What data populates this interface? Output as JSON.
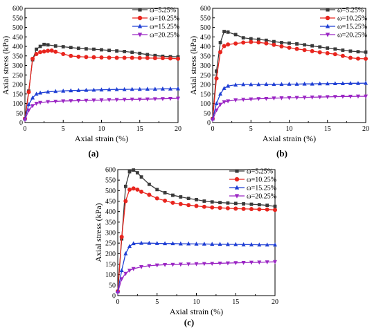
{
  "figure": {
    "panel_labels": [
      "(a)",
      "(b)",
      "(c)"
    ]
  },
  "chart_data": [
    {
      "panel": "(a)",
      "type": "line",
      "xlabel": "Axial strain (%)",
      "ylabel": "Axial stress (kPa)",
      "xlim": [
        0,
        20
      ],
      "ylim": [
        0,
        600
      ],
      "xticks": [
        0,
        5,
        10,
        15,
        20
      ],
      "yticks": [
        0,
        50,
        100,
        150,
        200,
        250,
        300,
        350,
        400,
        450,
        500,
        550,
        600
      ],
      "legend_position": "top-right",
      "series": [
        {
          "name": "ω=5.25%",
          "color": "#3a3a3a",
          "marker": "square",
          "x": [
            0,
            0.5,
            1.0,
            1.5,
            2.0,
            2.5,
            3.0,
            4.0,
            5.0,
            6.0,
            7.0,
            8.0,
            9.0,
            10.0,
            11.0,
            12.0,
            13.0,
            14.0,
            15.0,
            16.0,
            17.0,
            18.0,
            19.0,
            20.0
          ],
          "y": [
            20,
            165,
            330,
            385,
            400,
            410,
            408,
            402,
            398,
            394,
            390,
            387,
            385,
            382,
            379,
            376,
            373,
            369,
            363,
            357,
            352,
            348,
            346,
            345
          ]
        },
        {
          "name": "ω=10.25%",
          "color": "#e8251e",
          "marker": "circle",
          "x": [
            0,
            0.5,
            1.0,
            1.5,
            2.0,
            2.5,
            3.0,
            3.5,
            4.0,
            5.0,
            6.0,
            7.0,
            8.0,
            9.0,
            10.0,
            11.0,
            12.0,
            13.0,
            14.0,
            15.0,
            16.0,
            17.0,
            18.0,
            19.0,
            20.0
          ],
          "y": [
            20,
            160,
            335,
            360,
            370,
            373,
            377,
            378,
            372,
            360,
            350,
            346,
            344,
            343,
            342,
            341,
            340,
            340,
            340,
            339,
            339,
            338,
            338,
            337,
            335
          ]
        },
        {
          "name": "ω=15.25%",
          "color": "#1f3fd4",
          "marker": "triangle-up",
          "x": [
            0,
            0.5,
            1.0,
            1.5,
            2.0,
            3.0,
            4.0,
            5.0,
            6.0,
            7.0,
            8.0,
            9.0,
            10.0,
            11.0,
            12.0,
            13.0,
            14.0,
            15.0,
            16.0,
            17.0,
            18.0,
            19.0,
            20.0
          ],
          "y": [
            20,
            95,
            130,
            150,
            156,
            161,
            164,
            166,
            168,
            169,
            170,
            171,
            172,
            173,
            174,
            174,
            175,
            175,
            176,
            176,
            177,
            177,
            178
          ]
        },
        {
          "name": "ω=20.25%",
          "color": "#9b26c4",
          "marker": "triangle-down",
          "x": [
            0,
            0.5,
            1.0,
            1.5,
            2.0,
            3.0,
            4.0,
            5.0,
            6.0,
            7.0,
            8.0,
            9.0,
            10.0,
            11.0,
            12.0,
            13.0,
            14.0,
            15.0,
            16.0,
            17.0,
            18.0,
            19.0,
            20.0
          ],
          "y": [
            15,
            65,
            88,
            100,
            105,
            109,
            111,
            113,
            114,
            115,
            116,
            117,
            118,
            119,
            120,
            121,
            122,
            122,
            123,
            124,
            125,
            126,
            127
          ]
        }
      ]
    },
    {
      "panel": "(b)",
      "type": "line",
      "xlabel": "Axial strain (%)",
      "ylabel": "Axial stress (kPa)",
      "xlim": [
        0,
        20
      ],
      "ylim": [
        0,
        600
      ],
      "xticks": [
        0,
        5,
        10,
        15,
        20
      ],
      "yticks": [
        0,
        50,
        100,
        150,
        200,
        250,
        300,
        350,
        400,
        450,
        500,
        550,
        600
      ],
      "legend_position": "top-right",
      "series": [
        {
          "name": "ω=5.25%",
          "color": "#3a3a3a",
          "marker": "square",
          "x": [
            0,
            0.5,
            1.0,
            1.5,
            2.0,
            3.0,
            4.0,
            5.0,
            6.0,
            7.0,
            8.0,
            9.0,
            10.0,
            11.0,
            12.0,
            13.0,
            14.0,
            15.0,
            16.0,
            17.0,
            18.0,
            19.0,
            20.0
          ],
          "y": [
            20,
            270,
            420,
            478,
            475,
            462,
            445,
            440,
            437,
            432,
            425,
            420,
            417,
            413,
            408,
            403,
            397,
            391,
            386,
            380,
            375,
            372,
            370
          ]
        },
        {
          "name": "ω=10.25%",
          "color": "#e8251e",
          "marker": "circle",
          "x": [
            0,
            0.5,
            1.0,
            1.5,
            2.0,
            3.0,
            4.0,
            5.0,
            6.0,
            7.0,
            8.0,
            9.0,
            10.0,
            11.0,
            12.0,
            13.0,
            14.0,
            15.0,
            16.0,
            17.0,
            18.0,
            19.0,
            20.0
          ],
          "y": [
            20,
            232,
            370,
            402,
            410,
            415,
            420,
            423,
            421,
            416,
            408,
            400,
            393,
            387,
            381,
            375,
            369,
            364,
            359,
            350,
            340,
            336,
            335
          ]
        },
        {
          "name": "ω=15.25%",
          "color": "#1f3fd4",
          "marker": "triangle-up",
          "x": [
            0,
            0.5,
            1.0,
            1.5,
            2.0,
            3.0,
            4.0,
            5.0,
            6.0,
            7.0,
            8.0,
            9.0,
            10.0,
            11.0,
            12.0,
            13.0,
            14.0,
            15.0,
            16.0,
            17.0,
            18.0,
            19.0,
            20.0
          ],
          "y": [
            20,
            100,
            150,
            180,
            192,
            198,
            200,
            200,
            200,
            201,
            201,
            201,
            202,
            202,
            203,
            203,
            204,
            204,
            205,
            205,
            206,
            206,
            207
          ]
        },
        {
          "name": "ω=20.25%",
          "color": "#9b26c4",
          "marker": "triangle-down",
          "x": [
            0,
            0.5,
            1.0,
            1.5,
            2.0,
            3.0,
            4.0,
            5.0,
            6.0,
            7.0,
            8.0,
            9.0,
            10.0,
            11.0,
            12.0,
            13.0,
            14.0,
            15.0,
            16.0,
            17.0,
            18.0,
            19.0,
            20.0
          ],
          "y": [
            15,
            65,
            95,
            108,
            113,
            118,
            121,
            123,
            125,
            126,
            128,
            129,
            130,
            131,
            132,
            133,
            134,
            135,
            136,
            137,
            137,
            138,
            138
          ]
        }
      ]
    },
    {
      "panel": "(c)",
      "type": "line",
      "xlabel": "Axial strain (%)",
      "ylabel": "Axial stress (kPa)",
      "xlim": [
        0,
        20
      ],
      "ylim": [
        0,
        600
      ],
      "xticks": [
        0,
        5,
        10,
        15,
        20
      ],
      "yticks": [
        0,
        50,
        100,
        150,
        200,
        250,
        300,
        350,
        400,
        450,
        500,
        550,
        600
      ],
      "legend_position": "top-right",
      "series": [
        {
          "name": "ω=5.25%",
          "color": "#3a3a3a",
          "marker": "square",
          "x": [
            0,
            0.5,
            1.0,
            1.5,
            2.0,
            2.5,
            3.0,
            4.0,
            5.0,
            6.0,
            7.0,
            8.0,
            9.0,
            10.0,
            11.0,
            12.0,
            13.0,
            14.0,
            15.0,
            16.0,
            17.0,
            18.0,
            19.0,
            20.0
          ],
          "y": [
            20,
            270,
            520,
            590,
            598,
            585,
            565,
            530,
            505,
            490,
            478,
            470,
            463,
            457,
            450,
            446,
            443,
            441,
            439,
            437,
            435,
            433,
            430,
            425
          ]
        },
        {
          "name": "ω=10.25%",
          "color": "#e8251e",
          "marker": "circle",
          "x": [
            0,
            0.5,
            1.0,
            1.5,
            2.0,
            2.5,
            3.0,
            4.0,
            5.0,
            6.0,
            7.0,
            8.0,
            9.0,
            10.0,
            11.0,
            12.0,
            13.0,
            14.0,
            15.0,
            16.0,
            17.0,
            18.0,
            19.0,
            20.0
          ],
          "y": [
            20,
            280,
            450,
            505,
            510,
            505,
            495,
            480,
            463,
            452,
            442,
            436,
            431,
            427,
            423,
            420,
            418,
            416,
            414,
            413,
            412,
            411,
            410,
            408
          ]
        },
        {
          "name": "ω=15.25%",
          "color": "#1f3fd4",
          "marker": "triangle-up",
          "x": [
            0,
            0.5,
            1.0,
            1.5,
            2.0,
            3.0,
            4.0,
            5.0,
            6.0,
            7.0,
            8.0,
            9.0,
            10.0,
            11.0,
            12.0,
            13.0,
            14.0,
            15.0,
            16.0,
            17.0,
            18.0,
            19.0,
            20.0
          ],
          "y": [
            20,
            120,
            200,
            235,
            248,
            250,
            250,
            249,
            248,
            248,
            247,
            247,
            246,
            246,
            245,
            245,
            244,
            244,
            243,
            243,
            242,
            242,
            242
          ]
        },
        {
          "name": "ω=20.25%",
          "color": "#9b26c4",
          "marker": "triangle-down",
          "x": [
            0,
            0.5,
            1.0,
            1.5,
            2.0,
            3.0,
            4.0,
            5.0,
            6.0,
            7.0,
            8.0,
            9.0,
            10.0,
            11.0,
            12.0,
            13.0,
            14.0,
            15.0,
            16.0,
            17.0,
            18.0,
            19.0,
            20.0
          ],
          "y": [
            15,
            80,
            105,
            120,
            128,
            137,
            142,
            145,
            147,
            148,
            149,
            150,
            151,
            152,
            153,
            154,
            155,
            156,
            157,
            158,
            159,
            160,
            161
          ]
        }
      ]
    }
  ]
}
